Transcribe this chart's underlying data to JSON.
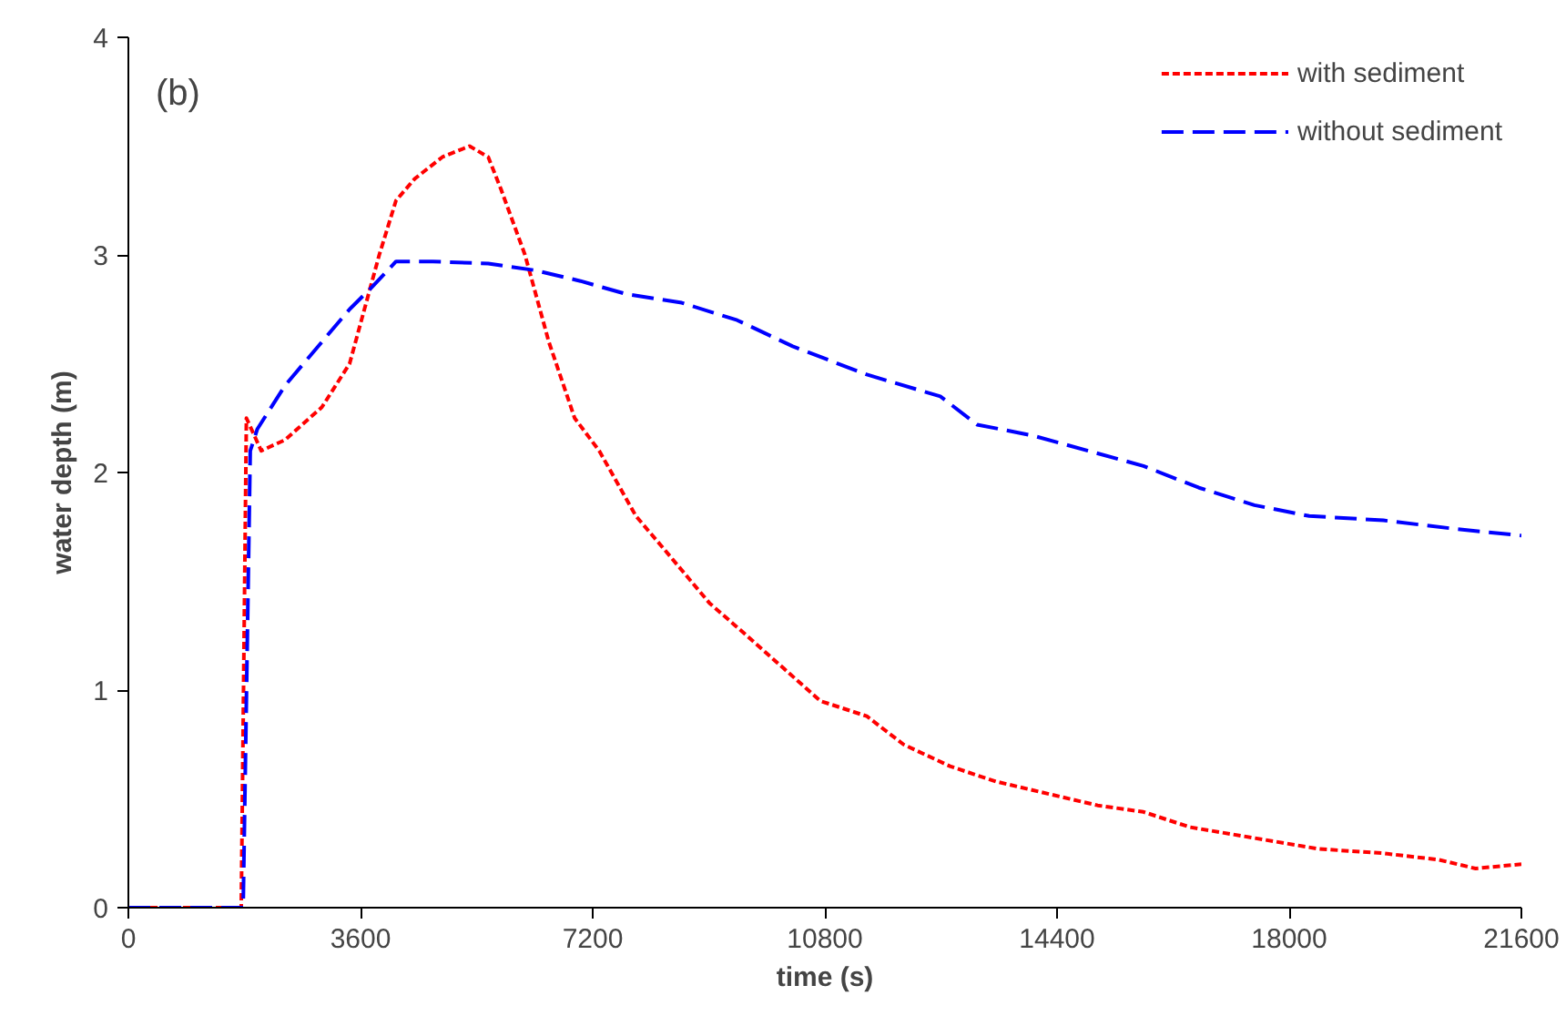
{
  "chart_data": {
    "type": "line",
    "xlabel": "time (s)",
    "ylabel": "water depth (m)",
    "annotations": [
      "(b)"
    ],
    "xlim": [
      0,
      21600
    ],
    "xticks": [
      0,
      3600,
      7200,
      10800,
      14400,
      18000,
      21600
    ],
    "ylim": [
      0,
      4
    ],
    "yticks": [
      0,
      1,
      2,
      3,
      4
    ],
    "grid": false,
    "legend": "top right",
    "marker": "none",
    "series": [
      {
        "name": "with sediment",
        "color": "#ff0000",
        "line_style": "dotted",
        "x": [
          0,
          1750,
          1830,
          2060,
          2430,
          3000,
          3430,
          3660,
          3890,
          4150,
          4440,
          4870,
          5290,
          5580,
          5780,
          6150,
          6520,
          6920,
          7300,
          7870,
          8300,
          9010,
          9590,
          10160,
          10730,
          11450,
          12020,
          12740,
          13450,
          14310,
          15030,
          15740,
          16460,
          17460,
          18460,
          19460,
          20320,
          20890,
          21600
        ],
        "values": [
          0,
          0,
          2.25,
          2.1,
          2.15,
          2.3,
          2.5,
          2.75,
          3.0,
          3.25,
          3.35,
          3.45,
          3.5,
          3.45,
          3.3,
          3.0,
          2.6,
          2.25,
          2.1,
          1.8,
          1.65,
          1.4,
          1.25,
          1.1,
          0.95,
          0.88,
          0.75,
          0.65,
          0.58,
          0.52,
          0.47,
          0.44,
          0.37,
          0.32,
          0.27,
          0.25,
          0.22,
          0.18,
          0.2
        ]
      },
      {
        "name": "without sediment",
        "color": "#0000ff",
        "line_style": "dashed",
        "x": [
          0,
          1780,
          1890,
          2000,
          2430,
          3000,
          3430,
          3770,
          4150,
          4720,
          5580,
          6290,
          7010,
          7720,
          8580,
          9440,
          10300,
          11450,
          12590,
          13160,
          14020,
          14880,
          15740,
          16600,
          17460,
          18310,
          19460,
          20600,
          21600
        ],
        "values": [
          0,
          0,
          2.1,
          2.2,
          2.4,
          2.6,
          2.75,
          2.85,
          2.97,
          2.97,
          2.96,
          2.93,
          2.88,
          2.82,
          2.78,
          2.7,
          2.58,
          2.45,
          2.35,
          2.22,
          2.17,
          2.1,
          2.03,
          1.93,
          1.85,
          1.8,
          1.78,
          1.74,
          1.71
        ]
      }
    ]
  }
}
